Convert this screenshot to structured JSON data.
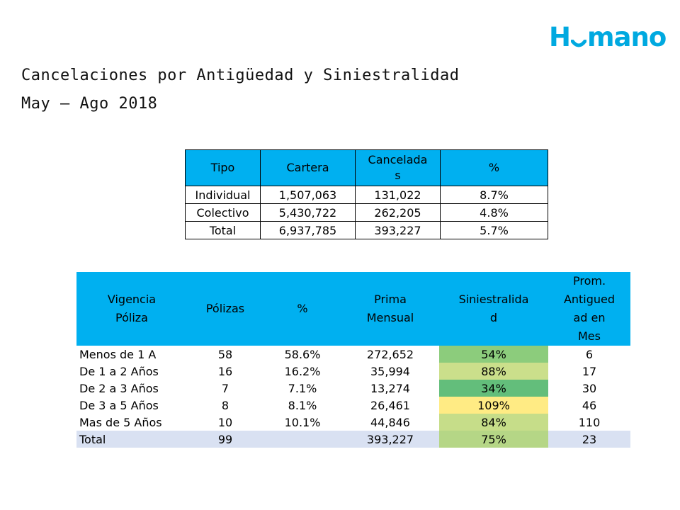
{
  "logo": {
    "prefix": "H",
    "suffix": "mano",
    "color": "#00a9e0"
  },
  "title": {
    "line1": "Cancelaciones por Antigüedad y Siniestralidad",
    "line2": "May – Ago 2018"
  },
  "table1": {
    "headers": [
      "Tipo",
      "Cartera",
      "Cancelada\ns",
      "%"
    ],
    "rows": [
      [
        "Individual",
        "1,507,063",
        "131,022",
        "8.7%"
      ],
      [
        "Colectivo",
        "5,430,722",
        "262,205",
        "4.8%"
      ],
      [
        "Total",
        "6,937,785",
        "393,227",
        "5.7%"
      ]
    ]
  },
  "table2": {
    "headers": [
      "Vigencia\nPóliza",
      "Pólizas",
      "%",
      "Prima\nMensual",
      "Siniestralida\nd",
      "Prom.\nAntigued\nad en\nMes"
    ],
    "rows": [
      {
        "cells": [
          "Menos de 1 A",
          "58",
          "58.6%",
          "272,652",
          "54%",
          "6"
        ],
        "sin_color": "#8ccc7c"
      },
      {
        "cells": [
          "De 1 a 2 Años",
          "16",
          "16.2%",
          "35,994",
          "88%",
          "17"
        ],
        "sin_color": "#cbdf8b"
      },
      {
        "cells": [
          "De 2 a 3 Años",
          "7",
          "7.1%",
          "13,274",
          "34%",
          "30"
        ],
        "sin_color": "#63be7b"
      },
      {
        "cells": [
          "De 3 a 5 Años",
          "8",
          "8.1%",
          "26,461",
          "109%",
          "46"
        ],
        "sin_color": "#ffeb84"
      },
      {
        "cells": [
          "Mas de 5 Años",
          "10",
          "10.1%",
          "44,846",
          "84%",
          "110"
        ],
        "sin_color": "#c6dd89"
      }
    ],
    "total": {
      "cells": [
        "Total",
        "99",
        "",
        "393,227",
        "75%",
        "23"
      ],
      "sin_color": "#b5d686"
    }
  }
}
